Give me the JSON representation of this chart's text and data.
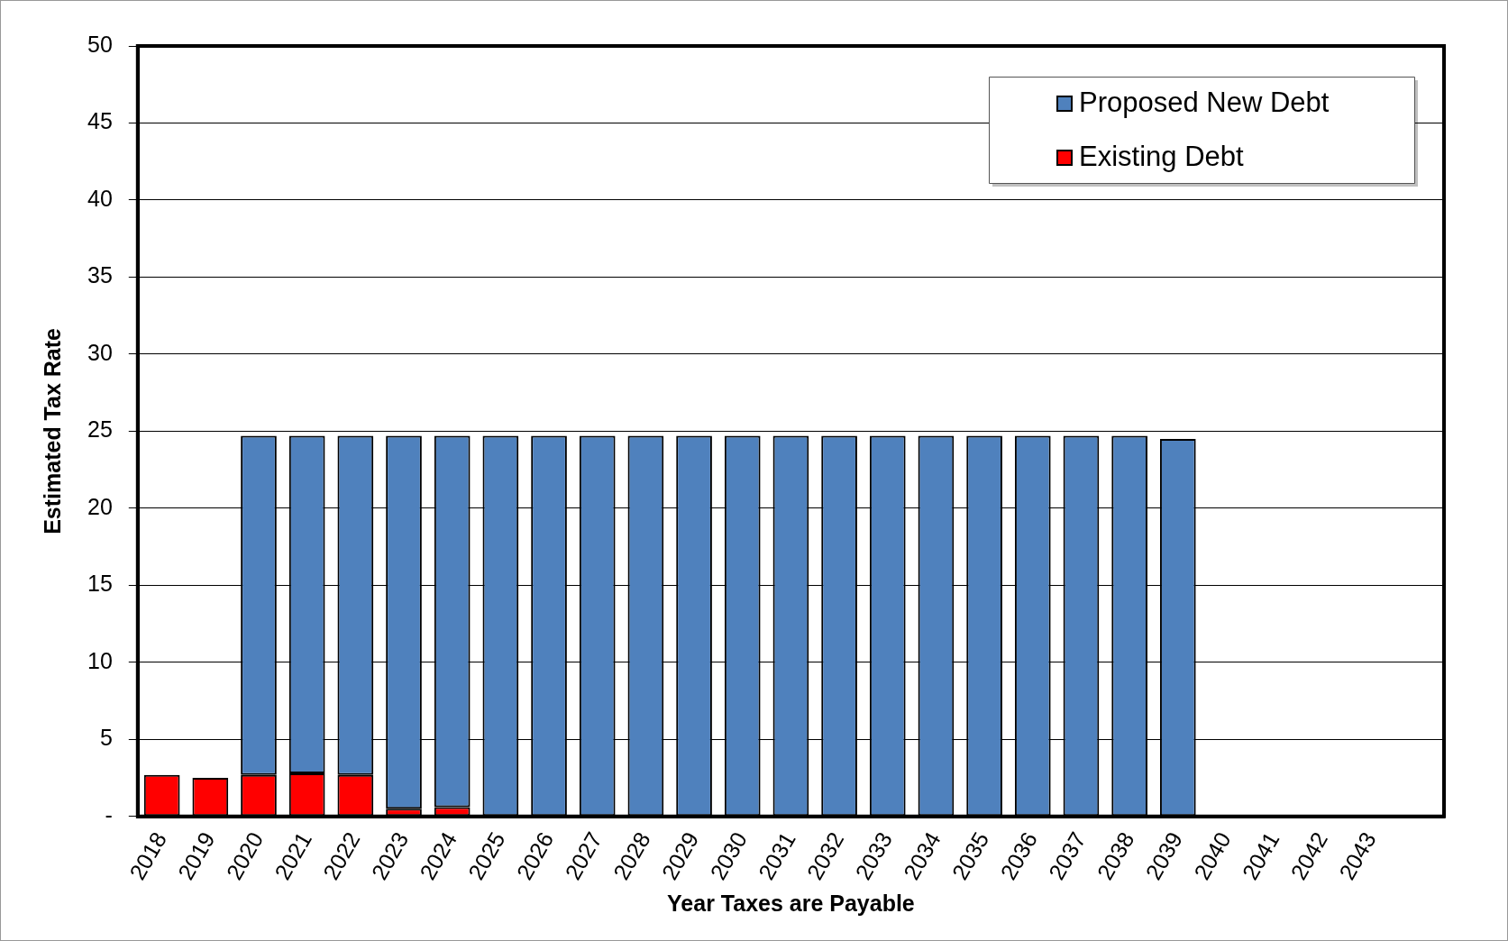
{
  "chart_data": {
    "type": "bar",
    "xlabel": "Year Taxes are Payable",
    "ylabel": "Estimated Tax Rate",
    "categories": [
      "2018",
      "2019",
      "2020",
      "2021",
      "2022",
      "2023",
      "2024",
      "2025",
      "2026",
      "2027",
      "2028",
      "2029",
      "2030",
      "2031",
      "2032",
      "2033",
      "2034",
      "2035",
      "2036",
      "2037",
      "2038",
      "2039",
      "2040",
      "2041",
      "2042",
      "2043",
      null
    ],
    "stacked": true,
    "series": [
      {
        "name": "Existing Debt",
        "color": "#ff0000",
        "values": [
          2.7,
          2.5,
          2.7,
          2.8,
          2.7,
          0.5,
          0.6,
          null,
          null,
          null,
          null,
          null,
          null,
          null,
          null,
          null,
          null,
          null,
          null,
          null,
          null,
          null,
          null,
          null,
          null,
          null,
          null
        ]
      },
      {
        "name": "Proposed New Debt",
        "color": "#4f81bd",
        "values": [
          null,
          null,
          22.0,
          21.9,
          22.0,
          24.2,
          24.1,
          24.7,
          24.7,
          24.7,
          24.7,
          24.7,
          24.7,
          24.7,
          24.7,
          24.7,
          24.7,
          24.7,
          24.7,
          24.7,
          24.7,
          24.5,
          null,
          null,
          null,
          null,
          null
        ]
      }
    ],
    "ylim": [
      0,
      50
    ],
    "yticks": [
      {
        "value": 0,
        "label": "-"
      },
      5,
      10,
      15,
      20,
      25,
      30,
      35,
      40,
      45,
      50
    ],
    "grid": "y",
    "legend": "top right"
  }
}
